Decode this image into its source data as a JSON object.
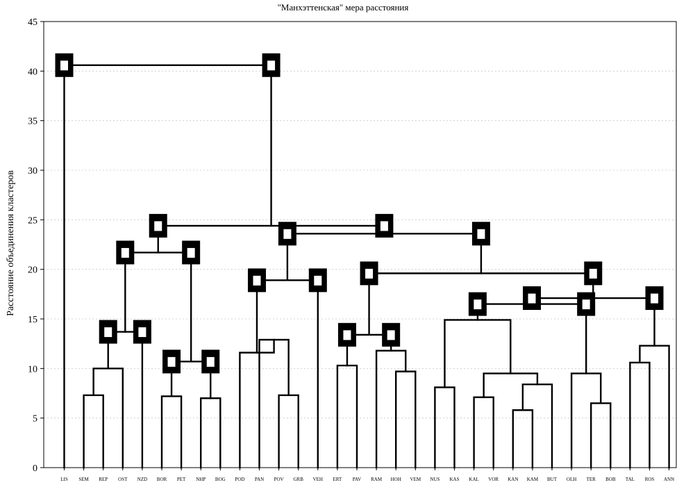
{
  "chart_data": {
    "type": "dendrogram",
    "title": "\"Манхэттенская\" мера расстояния",
    "xlabel": "",
    "ylabel": "Расстояние объединения кластеров",
    "ylim": [
      0,
      45
    ],
    "yticks": [
      0,
      5,
      10,
      15,
      20,
      25,
      30,
      35,
      40,
      45
    ],
    "grid": true,
    "leaves": [
      "LIS",
      "SEM",
      "REP",
      "OST",
      "NZD",
      "BOR",
      "PET",
      "NHP",
      "BOG",
      "POD",
      "PAN",
      "POV",
      "GRB",
      "VEH",
      "ERT",
      "PAV",
      "RAM",
      "HOH",
      "VEM",
      "NUS",
      "KAS",
      "KAL",
      "VOR",
      "KAN",
      "KAM",
      "BUT",
      "OLH",
      "TER",
      "BOB",
      "TAL",
      "ROS",
      "ANN"
    ],
    "merges": [
      {
        "id": "c1",
        "left": "SEM",
        "right": "REP",
        "height": 7.3
      },
      {
        "id": "c2",
        "left": "c1",
        "right": "OST",
        "height": 10.0
      },
      {
        "id": "c3",
        "left": "c2",
        "right": "NZD",
        "height": 13.7,
        "labels": [
          "a",
          "b"
        ]
      },
      {
        "id": "c4",
        "left": "BOR",
        "right": "PET",
        "height": 7.2
      },
      {
        "id": "c5",
        "left": "NHP",
        "right": "BOG",
        "height": 7.0
      },
      {
        "id": "c6",
        "left": "c4",
        "right": "c5",
        "height": 10.7,
        "labels": [
          "a",
          "b"
        ]
      },
      {
        "id": "c7",
        "left": "c3",
        "right": "c6",
        "height": 21.7,
        "labels": [
          "a",
          "b"
        ]
      },
      {
        "id": "c8",
        "left": "POV",
        "right": "GRB",
        "height": 7.3
      },
      {
        "id": "c9",
        "left": "PAN",
        "right": "c8",
        "height": 12.9
      },
      {
        "id": "c10",
        "left": "POD",
        "right": "c9",
        "height": 11.6
      },
      {
        "id": "c11",
        "left": "c10",
        "right": "VEH",
        "height": 18.9,
        "labels": [
          "a",
          "b"
        ]
      },
      {
        "id": "c12",
        "left": "ERT",
        "right": "PAV",
        "height": 10.3
      },
      {
        "id": "c13",
        "left": "HOH",
        "right": "VEM",
        "height": 9.7
      },
      {
        "id": "c14",
        "left": "RAM",
        "right": "c13",
        "height": 11.8
      },
      {
        "id": "c15",
        "left": "c12",
        "right": "c14",
        "height": 13.4,
        "labels": [
          "a",
          "b"
        ]
      },
      {
        "id": "c16",
        "left": "NUS",
        "right": "KAS",
        "height": 8.1
      },
      {
        "id": "c17",
        "left": "KAN",
        "right": "KAM",
        "height": 5.8
      },
      {
        "id": "c18",
        "left": "c17",
        "right": "BUT",
        "height": 8.4
      },
      {
        "id": "c19",
        "left": "KAL",
        "right": "VOR",
        "height": 7.1
      },
      {
        "id": "c20",
        "left": "c19",
        "right": "c18",
        "height": 9.5
      },
      {
        "id": "c21",
        "left": "c16",
        "right": "c20",
        "height": 14.9
      },
      {
        "id": "c22",
        "left": "TER",
        "right": "BOB",
        "height": 6.5
      },
      {
        "id": "c23",
        "left": "OLH",
        "right": "c22",
        "height": 9.5
      },
      {
        "id": "c24",
        "left": "c21",
        "right": "c23",
        "height": 16.5,
        "labels": [
          "a",
          "b"
        ]
      },
      {
        "id": "c25",
        "left": "TAL",
        "right": "ROS",
        "height": 10.6
      },
      {
        "id": "c26",
        "left": "c25",
        "right": "ANN",
        "height": 12.3
      },
      {
        "id": "c27",
        "left": "c24",
        "right": "c26",
        "height": 17.1,
        "labels": [
          "a",
          "b"
        ]
      },
      {
        "id": "c28",
        "left": "c15",
        "right": "c27",
        "height": 19.6,
        "labels": [
          "a",
          "b"
        ]
      },
      {
        "id": "c29",
        "left": "c11",
        "right": "c28",
        "height": 23.6,
        "labels": [
          "a",
          "b"
        ]
      },
      {
        "id": "c30",
        "left": "c7",
        "right": "c29",
        "height": 24.4,
        "labels": [
          "a",
          "b"
        ]
      },
      {
        "id": "c31",
        "left": "LIS",
        "right": "c30",
        "height": 40.6,
        "labels": [
          "a",
          "b"
        ]
      }
    ]
  }
}
